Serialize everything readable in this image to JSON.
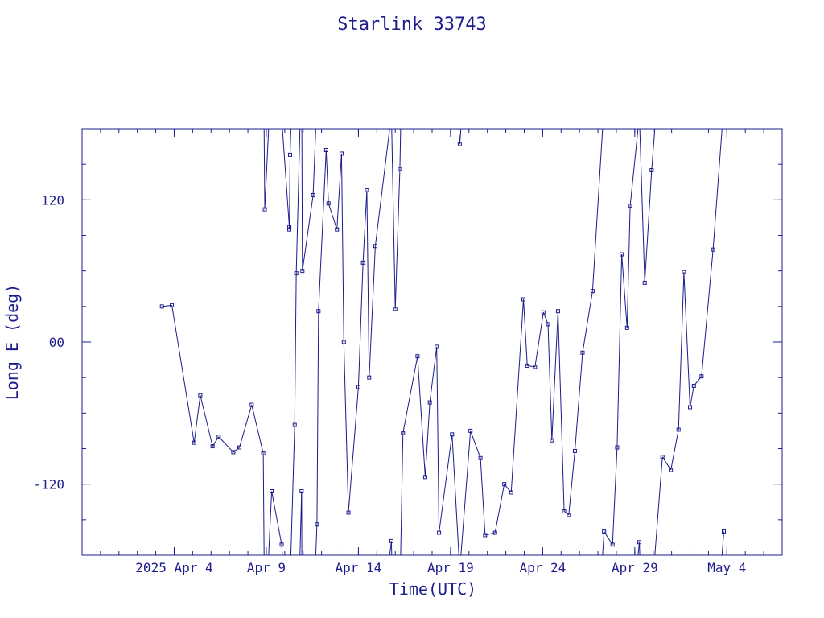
{
  "chart_data": {
    "type": "scatter",
    "title": "Starlink 33743",
    "xlabel": "Time(UTC)",
    "ylabel": "Long E (deg)",
    "color": "#1c1c8c",
    "x_unit": "date (UTC), 2025",
    "x_range": [
      "2025-03-30",
      "2025-05-07"
    ],
    "ylim": [
      -180,
      180
    ],
    "wrap_longitude": true,
    "x_ticks": [
      {
        "label": "2025 Apr  4",
        "date": "2025-04-04"
      },
      {
        "label": "Apr  9",
        "date": "2025-04-09"
      },
      {
        "label": "Apr 14",
        "date": "2025-04-14"
      },
      {
        "label": "Apr 19",
        "date": "2025-04-19"
      },
      {
        "label": "Apr 24",
        "date": "2025-04-24"
      },
      {
        "label": "Apr 29",
        "date": "2025-04-29"
      },
      {
        "label": "May  4",
        "date": "2025-05-04"
      }
    ],
    "y_ticks": [
      {
        "label": "120",
        "value": 120
      },
      {
        "label": "00",
        "value": 0
      },
      {
        "label": "-120",
        "value": -120
      }
    ],
    "series": [
      {
        "points": [
          {
            "x": "2025-04-03 08:00",
            "y": 30
          },
          {
            "x": "2025-04-03 21:00",
            "y": 31
          },
          {
            "x": "2025-04-05 02:00",
            "y": -85
          },
          {
            "x": "2025-04-05 10:00",
            "y": -45
          },
          {
            "x": "2025-04-06 02:00",
            "y": -88
          },
          {
            "x": "2025-04-06 10:00",
            "y": -80
          },
          {
            "x": "2025-04-07 05:00",
            "y": -93
          },
          {
            "x": "2025-04-07 13:00",
            "y": -89
          },
          {
            "x": "2025-04-08 05:00",
            "y": -53
          },
          {
            "x": "2025-04-08 20:00",
            "y": -94
          },
          {
            "x": "2025-04-08 22:00",
            "y": 112
          },
          {
            "x": "2025-04-09 07:00",
            "y": -126
          },
          {
            "x": "2025-04-09 20:00",
            "y": -171
          },
          {
            "x": "2025-04-10 06:00",
            "y": 97
          },
          {
            "x": "2025-04-10 06:00",
            "y": 95
          },
          {
            "x": "2025-04-10 07:00",
            "y": 158
          },
          {
            "x": "2025-04-10 13:00",
            "y": -70
          },
          {
            "x": "2025-04-10 15:00",
            "y": 58
          },
          {
            "x": "2025-04-10 22:00",
            "y": -126
          },
          {
            "x": "2025-04-10 23:00",
            "y": 60
          },
          {
            "x": "2025-04-11 13:00",
            "y": 124
          },
          {
            "x": "2025-04-11 18:00",
            "y": -154
          },
          {
            "x": "2025-04-11 20:00",
            "y": 26
          },
          {
            "x": "2025-04-12 06:00",
            "y": 162
          },
          {
            "x": "2025-04-12 09:00",
            "y": 117
          },
          {
            "x": "2025-04-12 20:00",
            "y": 95
          },
          {
            "x": "2025-04-13 02:00",
            "y": 159
          },
          {
            "x": "2025-04-13 05:00",
            "y": 0
          },
          {
            "x": "2025-04-13 11:00",
            "y": -144
          },
          {
            "x": "2025-04-14 00:00",
            "y": -38
          },
          {
            "x": "2025-04-14 06:00",
            "y": 67
          },
          {
            "x": "2025-04-14 11:00",
            "y": 128
          },
          {
            "x": "2025-04-14 14:00",
            "y": -30
          },
          {
            "x": "2025-04-14 22:00",
            "y": 81
          },
          {
            "x": "2025-04-15 19:00",
            "y": -168
          },
          {
            "x": "2025-04-16 00:00",
            "y": 28
          },
          {
            "x": "2025-04-16 06:00",
            "y": 146
          },
          {
            "x": "2025-04-16 10:00",
            "y": -77
          },
          {
            "x": "2025-04-17 05:00",
            "y": -12
          },
          {
            "x": "2025-04-17 15:00",
            "y": -114
          },
          {
            "x": "2025-04-17 21:00",
            "y": -51
          },
          {
            "x": "2025-04-18 06:00",
            "y": -4
          },
          {
            "x": "2025-04-18 09:00",
            "y": -161
          },
          {
            "x": "2025-04-19 02:00",
            "y": -78
          },
          {
            "x": "2025-04-19 12:00",
            "y": 167
          },
          {
            "x": "2025-04-20 02:00",
            "y": -75
          },
          {
            "x": "2025-04-20 15:00",
            "y": -98
          },
          {
            "x": "2025-04-20 21:00",
            "y": -163
          },
          {
            "x": "2025-04-21 10:00",
            "y": -161
          },
          {
            "x": "2025-04-21 22:00",
            "y": -120
          },
          {
            "x": "2025-04-22 07:00",
            "y": -127
          },
          {
            "x": "2025-04-22 23:00",
            "y": 36
          },
          {
            "x": "2025-04-23 04:00",
            "y": -20
          },
          {
            "x": "2025-04-23 14:00",
            "y": -21
          },
          {
            "x": "2025-04-24 01:00",
            "y": 25
          },
          {
            "x": "2025-04-24 07:00",
            "y": 15
          },
          {
            "x": "2025-04-24 12:00",
            "y": -83
          },
          {
            "x": "2025-04-24 20:00",
            "y": 26
          },
          {
            "x": "2025-04-25 04:00",
            "y": -143
          },
          {
            "x": "2025-04-25 10:00",
            "y": -146
          },
          {
            "x": "2025-04-25 18:00",
            "y": -92
          },
          {
            "x": "2025-04-26 04:00",
            "y": -9
          },
          {
            "x": "2025-04-26 17:00",
            "y": 43
          },
          {
            "x": "2025-04-27 08:00",
            "y": -160
          },
          {
            "x": "2025-04-27 19:00",
            "y": -171
          },
          {
            "x": "2025-04-28 01:00",
            "y": -89
          },
          {
            "x": "2025-04-28 07:00",
            "y": 74
          },
          {
            "x": "2025-04-28 14:00",
            "y": 12
          },
          {
            "x": "2025-04-28 18:00",
            "y": 115
          },
          {
            "x": "2025-04-29 06:00",
            "y": -169
          },
          {
            "x": "2025-04-29 13:00",
            "y": 50
          },
          {
            "x": "2025-04-29 22:00",
            "y": 145
          },
          {
            "x": "2025-04-30 12:00",
            "y": -97
          },
          {
            "x": "2025-04-30 23:00",
            "y": -108
          },
          {
            "x": "2025-05-01 09:00",
            "y": -74
          },
          {
            "x": "2025-05-01 16:00",
            "y": 59
          },
          {
            "x": "2025-05-02 00:00",
            "y": -55
          },
          {
            "x": "2025-05-02 05:00",
            "y": -37
          },
          {
            "x": "2025-05-02 15:00",
            "y": -29
          },
          {
            "x": "2025-05-03 06:00",
            "y": 78
          },
          {
            "x": "2025-05-03 20:00",
            "y": -160
          }
        ]
      }
    ]
  }
}
